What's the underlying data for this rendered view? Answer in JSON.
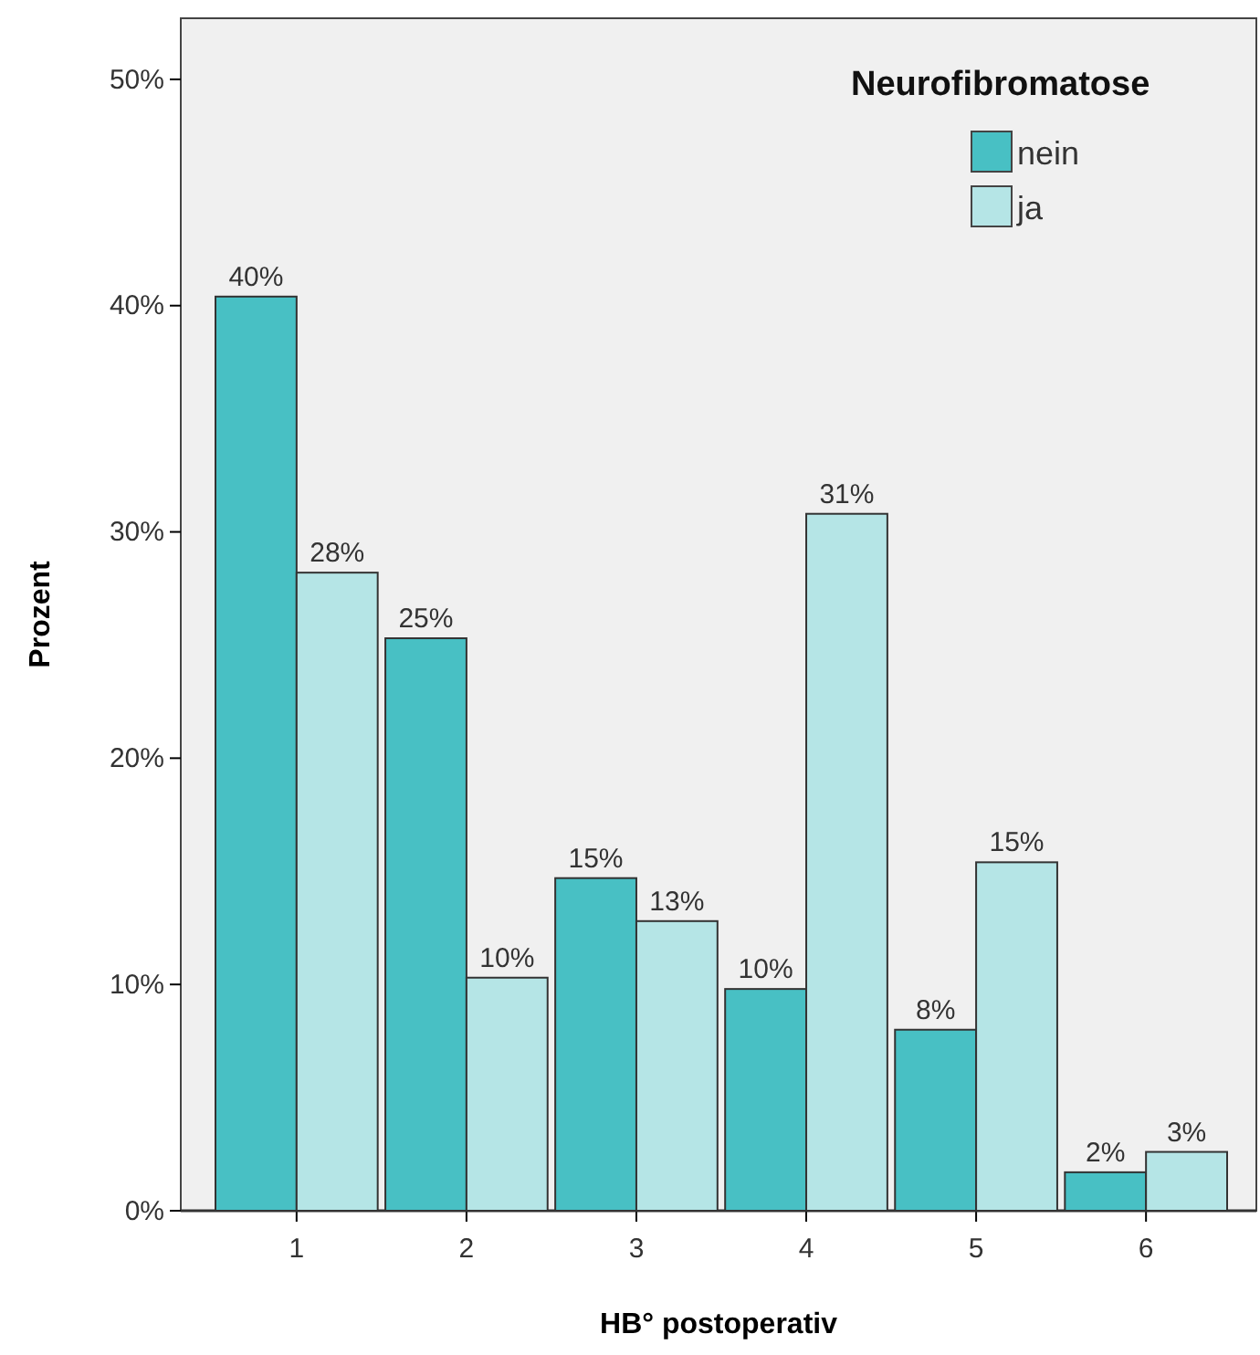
{
  "chart_data": {
    "type": "bar",
    "xlabel": "HB° postoperativ",
    "ylabel": "Prozent",
    "legend_title": "Neurofibromatose",
    "categories": [
      "1",
      "2",
      "3",
      "4",
      "5",
      "6"
    ],
    "series": [
      {
        "name": "nein",
        "color": "#48c0c4",
        "values": [
          40.4,
          25.3,
          14.7,
          9.8,
          8.0,
          1.7
        ],
        "value_labels": [
          "40%",
          "25%",
          "15%",
          "10%",
          "8%",
          "2%"
        ]
      },
      {
        "name": "ja",
        "color": "#b5e5e6",
        "values": [
          28.2,
          10.3,
          12.8,
          30.8,
          15.4,
          2.6
        ],
        "value_labels": [
          "28%",
          "10%",
          "13%",
          "31%",
          "15%",
          "3%"
        ]
      }
    ],
    "ylim": [
      0,
      52.7
    ],
    "yticks": [
      {
        "value": 0,
        "label": "0%"
      },
      {
        "value": 10,
        "label": "10%"
      },
      {
        "value": 20,
        "label": "20%"
      },
      {
        "value": 30,
        "label": "30%"
      },
      {
        "value": 40,
        "label": "40%"
      },
      {
        "value": 50,
        "label": "50%"
      }
    ],
    "grid": false,
    "legend": "top right"
  }
}
